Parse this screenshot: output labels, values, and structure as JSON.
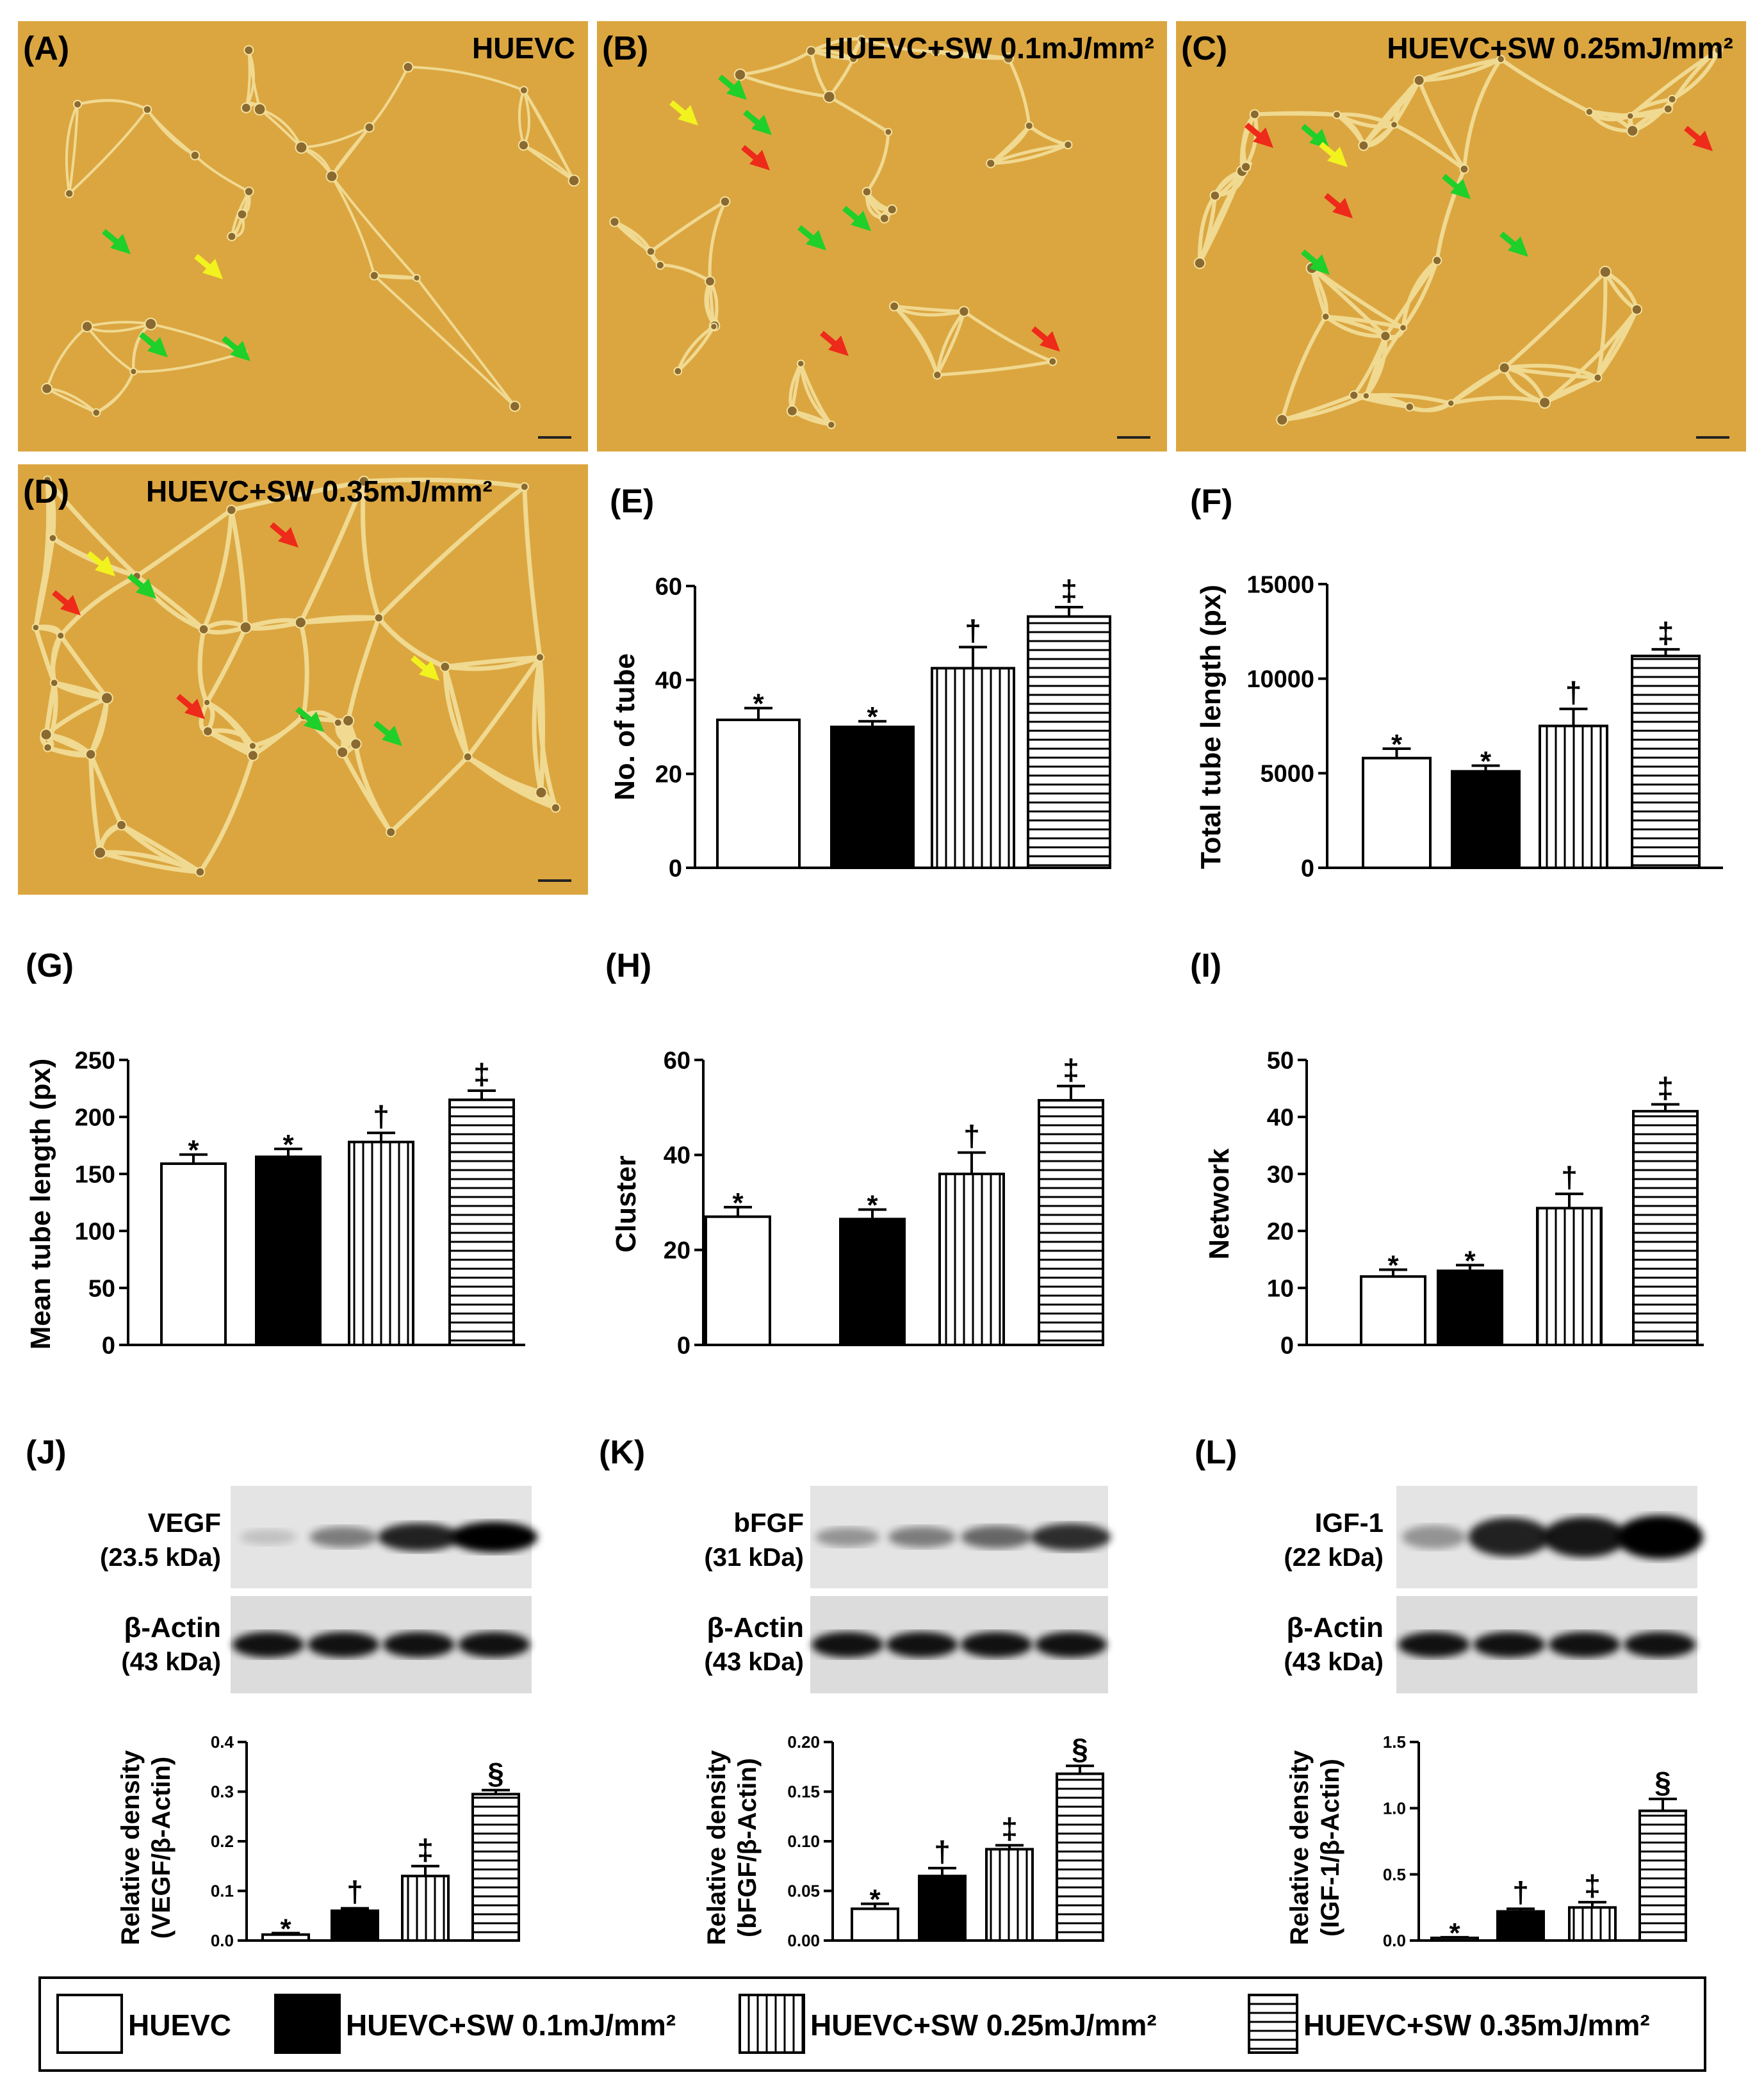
{
  "groups": [
    "HUEVC",
    "HUEVC+SW 0.1mJ/mm²",
    "HUEVC+SW 0.25mJ/mm²",
    "HUEVC+SW 0.35mJ/mm²"
  ],
  "micrographs": [
    {
      "label": "(A)",
      "title": "HUEVC"
    },
    {
      "label": "(B)",
      "title": "HUEVC+SW 0.1mJ/mm²"
    },
    {
      "label": "(C)",
      "title": "HUEVC+SW 0.25mJ/mm²"
    },
    {
      "label": "(D)",
      "title": "HUEVC+SW 0.35mJ/mm²"
    }
  ],
  "blots": [
    {
      "panel": "(J)",
      "target": "VEGF",
      "target_kda": "(23.5 kDa)",
      "control": "β-Actin",
      "control_kda": "(43 kDa)"
    },
    {
      "panel": "(K)",
      "target": "bFGF",
      "target_kda": "(31 kDa)",
      "control": "β-Actin",
      "control_kda": "(43 kDa)"
    },
    {
      "panel": "(L)",
      "target": "IGF-1",
      "target_kda": "(22 kDa)",
      "control": "β-Actin",
      "control_kda": "(43 kDa)"
    }
  ],
  "colors": {
    "micrograph_bg": "#dba640",
    "cell_line": "#f4e2a0",
    "arrow_green": "#1fcf2a",
    "arrow_yellow": "#f2f21e",
    "arrow_red": "#ee2a1a"
  },
  "chart_data": [
    {
      "panel": "(E)",
      "type": "bar",
      "ylabel": "No. of tube",
      "ylim": [
        0,
        60
      ],
      "yticks": [
        "0",
        "20",
        "40",
        "60"
      ],
      "values": [
        31.5,
        30,
        42.5,
        53.5
      ],
      "errors": [
        2.5,
        1.2,
        4.5,
        2
      ],
      "significance": [
        "*",
        "*",
        "†",
        "‡"
      ]
    },
    {
      "panel": "(F)",
      "type": "bar",
      "ylabel": "Total tube length (px)",
      "ylim": [
        0,
        15000
      ],
      "yticks": [
        "0",
        "5000",
        "10000",
        "15000"
      ],
      "values": [
        5800,
        5100,
        7500,
        11200
      ],
      "errors": [
        500,
        300,
        900,
        350
      ],
      "significance": [
        "*",
        "*",
        "†",
        "‡"
      ]
    },
    {
      "panel": "(G)",
      "type": "bar",
      "ylabel": "Mean tube length (px)",
      "ylim": [
        0,
        250
      ],
      "yticks": [
        "0",
        "50",
        "100",
        "150",
        "200",
        "250"
      ],
      "values": [
        159,
        165,
        178,
        215
      ],
      "errors": [
        8,
        7,
        8,
        8
      ],
      "significance": [
        "*",
        "*",
        "†",
        "‡"
      ]
    },
    {
      "panel": "(H)",
      "type": "bar",
      "ylabel": "Cluster",
      "ylim": [
        0,
        60
      ],
      "yticks": [
        "0",
        "20",
        "40",
        "60"
      ],
      "values": [
        27,
        26.5,
        36,
        51.5
      ],
      "errors": [
        2,
        2,
        4.5,
        3
      ],
      "significance": [
        "*",
        "*",
        "†",
        "‡"
      ]
    },
    {
      "panel": "(I)",
      "type": "bar",
      "ylabel": "Network",
      "ylim": [
        0,
        50
      ],
      "yticks": [
        "0",
        "10",
        "20",
        "30",
        "40",
        "50"
      ],
      "values": [
        12,
        13,
        24,
        41
      ],
      "errors": [
        1.2,
        1,
        2.5,
        1.2
      ],
      "significance": [
        "*",
        "*",
        "†",
        "‡"
      ]
    },
    {
      "panel": "(J)",
      "type": "bar",
      "ylabel": "Relative density (VEGF/β-Actin)",
      "ylim": [
        0,
        0.4
      ],
      "yticks": [
        "0.0",
        "0.1",
        "0.2",
        "0.3",
        "0.4"
      ],
      "values": [
        0.012,
        0.06,
        0.13,
        0.295
      ],
      "errors": [
        0.003,
        0.005,
        0.02,
        0.008
      ],
      "significance": [
        "*",
        "†",
        "‡",
        "§"
      ]
    },
    {
      "panel": "(K)",
      "type": "bar",
      "ylabel": "Relative density (bFGF/β-Actin)",
      "ylim": [
        0,
        0.2
      ],
      "yticks": [
        "0.00",
        "0.05",
        "0.10",
        "0.15",
        "0.20"
      ],
      "values": [
        0.032,
        0.065,
        0.092,
        0.168
      ],
      "errors": [
        0.005,
        0.008,
        0.004,
        0.008
      ],
      "significance": [
        "*",
        "†",
        "‡",
        "§"
      ]
    },
    {
      "panel": "(L)",
      "type": "bar",
      "ylabel": "Relative density (IGF-1/β-Actin)",
      "ylim": [
        0,
        1.5
      ],
      "yticks": [
        "0.0",
        "0.5",
        "1.0",
        "1.5"
      ],
      "values": [
        0.02,
        0.22,
        0.25,
        0.98
      ],
      "errors": [
        0.005,
        0.02,
        0.04,
        0.09
      ],
      "significance": [
        "*",
        "†",
        "‡",
        "§"
      ]
    }
  ]
}
